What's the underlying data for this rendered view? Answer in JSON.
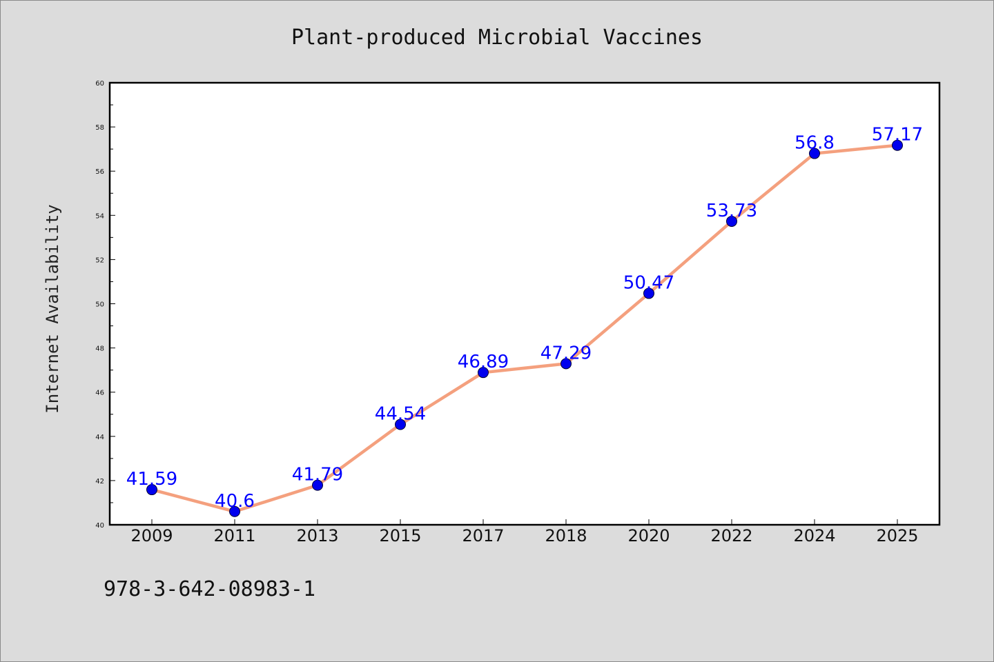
{
  "chart_data": {
    "type": "line",
    "title": "Plant-produced Microbial Vaccines",
    "xlabel": "",
    "ylabel": "Internet Availability",
    "categories": [
      "2009",
      "2011",
      "2013",
      "2015",
      "2017",
      "2018",
      "2020",
      "2022",
      "2024",
      "2025"
    ],
    "series": [
      {
        "values": [
          41.59,
          40.6,
          41.79,
          44.54,
          46.89,
          47.29,
          50.47,
          53.73,
          56.8,
          57.17
        ],
        "labels": [
          "41.59",
          "40.6",
          "41.79",
          "44.54",
          "46.89",
          "47.29",
          "50.47",
          "53.73",
          "56.8",
          "57.17"
        ],
        "line_color": "#f4a07e",
        "marker_color": "#0000ee"
      }
    ],
    "ylim": [
      40,
      60
    ],
    "yticks": [
      "40",
      "42",
      "44",
      "46",
      "48",
      "50",
      "52",
      "54",
      "56",
      "58",
      "60"
    ],
    "grid": false,
    "legend": "none",
    "data_label_color": "#0000ff"
  },
  "footnote": "978-3-642-08983-1"
}
